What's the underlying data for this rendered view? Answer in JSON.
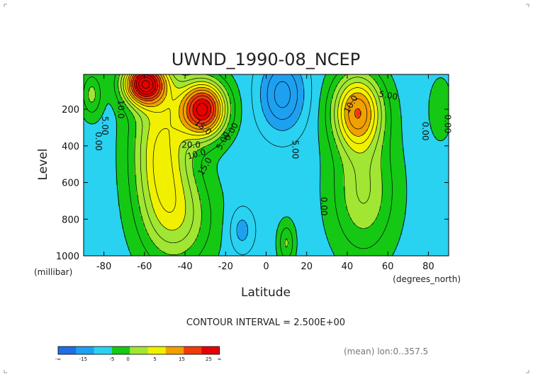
{
  "chart_data": {
    "type": "contour",
    "title": "UWND_1990-08_NCEP",
    "xlabel": "Latitude",
    "ylabel": "Level",
    "x_unit": "(degrees_north)",
    "y_unit": "(millibar)",
    "xlim": [
      -90,
      90
    ],
    "ylim": [
      1000,
      10
    ],
    "x_ticks": [
      -80,
      -60,
      -40,
      -20,
      0,
      20,
      40,
      60,
      80
    ],
    "y_ticks": [
      200,
      400,
      600,
      800,
      1000
    ],
    "contour_interval_text": "CONTOUR INTERVAL = 2.500E+00",
    "footnote": "(mean) lon:0..357.5",
    "colorbar": {
      "tick_labels": [
        "-∞",
        "-15",
        "-5",
        "0",
        "5",
        "15",
        "25",
        "∞"
      ],
      "colors": [
        "#1e6ee6",
        "#1ea0f0",
        "#28d2f0",
        "#14c814",
        "#a0e632",
        "#f0f000",
        "#f0a000",
        "#f03c0a",
        "#e60000"
      ]
    },
    "jets": [
      {
        "lat": -30,
        "level": 200,
        "peak": 26
      },
      {
        "lat": -60,
        "level": 60,
        "peak": 30
      },
      {
        "lat": 45,
        "level": 200,
        "peak": 19
      },
      {
        "lat": 10,
        "level": 100,
        "peak": -10
      }
    ],
    "contour_labels": [
      "10.0",
      "5.00",
      "0.00",
      "15.0",
      "20.0",
      "5.00",
      "0.00",
      "10.0",
      "15.0",
      "5.00",
      "10.0",
      "5.00",
      "0.00",
      "0.00",
      "0.00"
    ]
  }
}
